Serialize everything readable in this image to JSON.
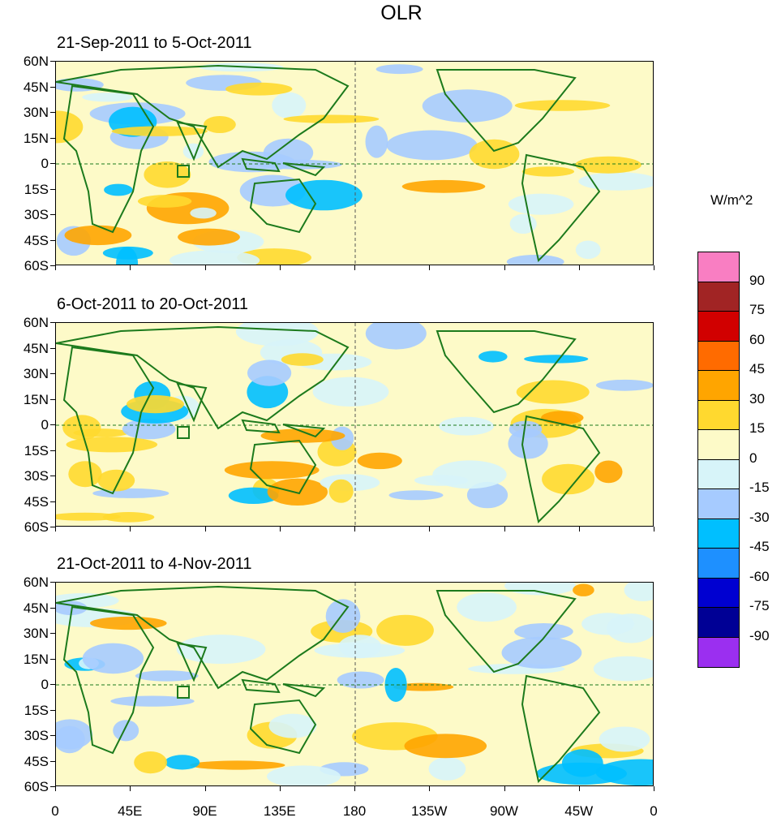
{
  "title": "OLR",
  "panels": [
    {
      "label": "21-Sep-2011 to 5-Oct-2011"
    },
    {
      "label": "6-Oct-2011 to 20-Oct-2011"
    },
    {
      "label": "21-Oct-2011 to 4-Nov-2011"
    }
  ],
  "lat_labels": [
    "60N",
    "45N",
    "30N",
    "15N",
    "0",
    "15S",
    "30S",
    "45S",
    "60S"
  ],
  "lon_labels": [
    "0",
    "45E",
    "90E",
    "135E",
    "180",
    "135W",
    "90W",
    "45W",
    "0"
  ],
  "colorbar": {
    "units": "W/m^2",
    "labels": [
      "90",
      "75",
      "60",
      "45",
      "30",
      "15",
      "0",
      "-15",
      "-30",
      "-45",
      "-60",
      "-75",
      "-90"
    ],
    "colors": [
      "#f97ec2",
      "#a12424",
      "#d10000",
      "#ff6b00",
      "#ffa500",
      "#ffd92f",
      "#fdfac8",
      "#d7f4f9",
      "#a6cbff",
      "#00bfff",
      "#1e90ff",
      "#0000d1",
      "#000095",
      "#9b2ff0"
    ]
  },
  "colors": {
    "land": "#1c7a1c",
    "ocean_base": "#fdfac8"
  }
}
